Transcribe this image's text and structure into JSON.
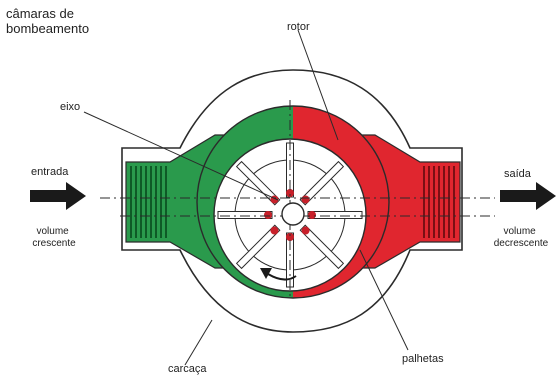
{
  "labels": {
    "chambers_line1": "câmaras de",
    "chambers_line2": "bombeamento",
    "rotor": "rotor",
    "eixo": "eixo",
    "entrada": "entrada",
    "volume_crescente_line1": "volume",
    "volume_crescente_line2": "crescente",
    "saida": "saída",
    "volume_decrescente_line1": "volume",
    "volume_decrescente_line2": "decrescente",
    "carcaca": "carcaça",
    "palhetas": "palhetas"
  },
  "colors": {
    "inlet_green": "#2a9a4c",
    "outlet_red": "#e0262f",
    "outline": "#2b2b2b",
    "vane_fill": "#ffffff",
    "vane_tip": "#c8202a",
    "arrow": "#1a1a1a"
  }
}
